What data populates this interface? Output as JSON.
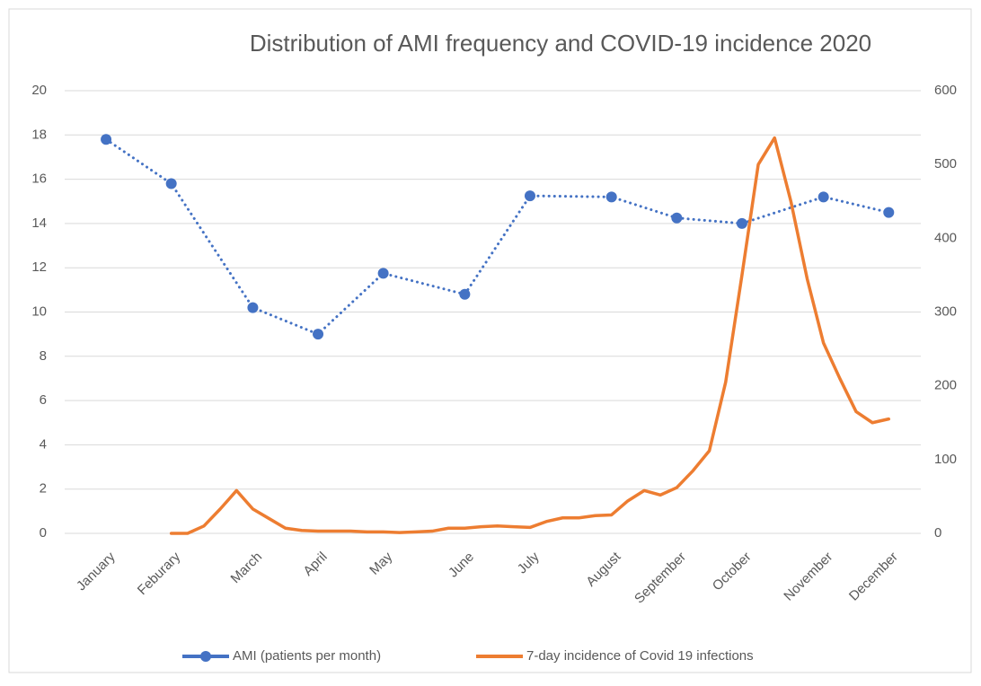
{
  "chart_data": {
    "type": "line",
    "title": "Distribution of AMI frequency and COVID-19 incidence 2020",
    "categories": [
      "January",
      null,
      null,
      null,
      "Feburary",
      null,
      null,
      null,
      null,
      "March",
      null,
      null,
      null,
      "April",
      null,
      null,
      null,
      "May",
      null,
      null,
      null,
      null,
      "June",
      null,
      null,
      null,
      "July",
      null,
      null,
      null,
      null,
      "August",
      null,
      null,
      null,
      "September",
      null,
      null,
      null,
      "October",
      null,
      null,
      null,
      null,
      "November",
      null,
      null,
      null,
      "December",
      null
    ],
    "series": [
      {
        "name": "AMI (patients per month)",
        "color": "#4472c4",
        "marker": true,
        "dash": "dotted",
        "span_gaps": true,
        "values": [
          17.8,
          null,
          null,
          null,
          15.8,
          null,
          null,
          null,
          null,
          10.2,
          null,
          null,
          null,
          9.0,
          null,
          null,
          null,
          11.75,
          null,
          null,
          null,
          null,
          10.8,
          null,
          null,
          null,
          15.25,
          null,
          null,
          null,
          null,
          15.2,
          null,
          null,
          null,
          14.25,
          null,
          null,
          null,
          14.0,
          null,
          null,
          null,
          null,
          15.2,
          null,
          null,
          null,
          14.5,
          null
        ]
      },
      {
        "name": "7-day incidence of Covid 19 infections",
        "color": "#ed7d31",
        "axis": "y2",
        "marker": false,
        "values": [
          null,
          null,
          null,
          null,
          0,
          0,
          10,
          33,
          58,
          33,
          20,
          7,
          4,
          3,
          3,
          3,
          2,
          2,
          1,
          2,
          3,
          7,
          7,
          9,
          10,
          9,
          8,
          16,
          21,
          21,
          24,
          25,
          44,
          58,
          52,
          62,
          85,
          112,
          205,
          350,
          500,
          536,
          450,
          345,
          258,
          210,
          165,
          150,
          155,
          null
        ]
      }
    ],
    "ylim": [
      0,
      20
    ],
    "yticks": [
      0,
      2,
      4,
      6,
      8,
      10,
      12,
      14,
      16,
      18,
      20
    ],
    "y2lim": [
      0,
      600
    ],
    "y2ticks": [
      0,
      100,
      200,
      300,
      400,
      500,
      600
    ],
    "grid": true,
    "legend": "bottom"
  }
}
